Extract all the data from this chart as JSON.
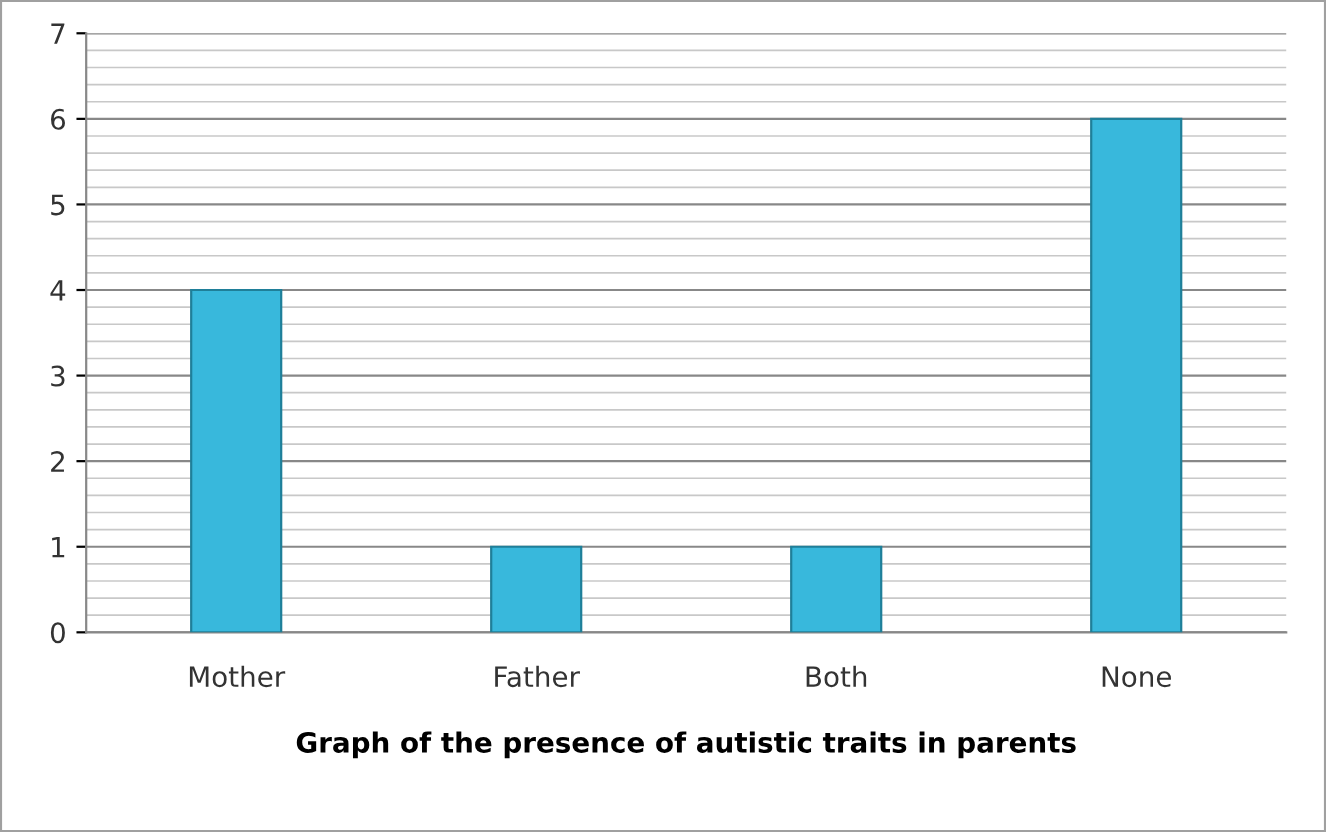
{
  "chart_data": {
    "type": "bar",
    "xlabel": "Graph of the presence of autistic traits in parents",
    "categories": [
      "Mother",
      "Father",
      "Both",
      "None"
    ],
    "values": [
      4,
      1,
      1,
      6
    ],
    "color": "#38b8dc",
    "ylim": [
      0,
      7
    ],
    "yticks": [
      0,
      1,
      2,
      3,
      4,
      5,
      6,
      7
    ],
    "grid": "y"
  }
}
